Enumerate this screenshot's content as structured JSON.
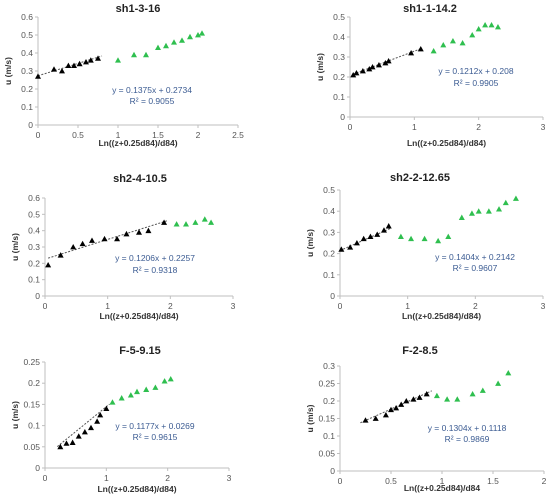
{
  "colors": {
    "black_series": "#000000",
    "green_series": "#2fbf4f",
    "equation_text": "#3b5b92"
  },
  "chart_data": [
    {
      "type": "scatter",
      "title": "sh1-3-16",
      "xlabel": "Ln((z+0.25d84)/d84)",
      "ylabel": "u (m/s)",
      "xlim": [
        0,
        2.5
      ],
      "ylim": [
        0,
        0.6
      ],
      "xticks": [
        "0",
        "0.5",
        "1",
        "1.5",
        "2",
        "2.5"
      ],
      "yticks": [
        "0",
        "0.1",
        "0.2",
        "0.3",
        "0.4",
        "0.5",
        "0.6"
      ],
      "series": [
        {
          "color": "black",
          "points": [
            [
              0.0,
              0.27
            ],
            [
              0.2,
              0.31
            ],
            [
              0.3,
              0.3
            ],
            [
              0.38,
              0.33
            ],
            [
              0.45,
              0.33
            ],
            [
              0.52,
              0.34
            ],
            [
              0.6,
              0.35
            ],
            [
              0.66,
              0.36
            ],
            [
              0.75,
              0.37
            ]
          ]
        },
        {
          "color": "green",
          "points": [
            [
              1.0,
              0.36
            ],
            [
              1.2,
              0.39
            ],
            [
              1.35,
              0.39
            ],
            [
              1.5,
              0.43
            ],
            [
              1.6,
              0.44
            ],
            [
              1.7,
              0.46
            ],
            [
              1.8,
              0.47
            ],
            [
              1.9,
              0.49
            ],
            [
              2.0,
              0.5
            ],
            [
              2.05,
              0.51
            ]
          ]
        }
      ],
      "trend": {
        "slope": 0.1375,
        "intercept": 0.2734,
        "x_range": [
          0,
          0.8
        ]
      },
      "equation": "y = 0.1375x + 0.2734",
      "r2": "R² = 0.9055"
    },
    {
      "type": "scatter",
      "title": "sh1-1-14.2",
      "xlabel": "Ln((z+0.25d84)/d84)",
      "ylabel": "u (m/s)",
      "xlim": [
        0,
        3
      ],
      "ylim": [
        0,
        0.5
      ],
      "xticks": [
        "0",
        "1",
        "2",
        "3"
      ],
      "yticks": [
        "0",
        "0.1",
        "0.2",
        "0.3",
        "0.4",
        "0.5"
      ],
      "series": [
        {
          "color": "black",
          "points": [
            [
              0.05,
              0.21
            ],
            [
              0.1,
              0.22
            ],
            [
              0.2,
              0.23
            ],
            [
              0.3,
              0.24
            ],
            [
              0.35,
              0.25
            ],
            [
              0.45,
              0.26
            ],
            [
              0.55,
              0.27
            ],
            [
              0.6,
              0.28
            ],
            [
              0.95,
              0.32
            ],
            [
              1.1,
              0.34
            ]
          ]
        },
        {
          "color": "green",
          "points": [
            [
              1.3,
              0.33
            ],
            [
              1.45,
              0.36
            ],
            [
              1.6,
              0.38
            ],
            [
              1.75,
              0.37
            ],
            [
              1.9,
              0.41
            ],
            [
              2.0,
              0.44
            ],
            [
              2.1,
              0.46
            ],
            [
              2.2,
              0.46
            ],
            [
              2.3,
              0.45
            ]
          ]
        }
      ],
      "trend": {
        "slope": 0.1212,
        "intercept": 0.208,
        "x_range": [
          0.05,
          1.12
        ]
      },
      "equation": "y = 0.1212x + 0.208",
      "r2": "R² = 0.9905"
    },
    {
      "type": "scatter",
      "title": "sh2-4-10.5",
      "xlabel": "Ln((z+0.25d84)/d84)",
      "ylabel": "u (m/s)",
      "xlim": [
        0,
        3
      ],
      "ylim": [
        0,
        0.6
      ],
      "xticks": [
        "0",
        "1",
        "2",
        "3"
      ],
      "yticks": [
        "0",
        "0.1",
        "0.2",
        "0.3",
        "0.4",
        "0.5",
        "0.6"
      ],
      "series": [
        {
          "color": "black",
          "points": [
            [
              0.05,
              0.19
            ],
            [
              0.25,
              0.25
            ],
            [
              0.45,
              0.3
            ],
            [
              0.6,
              0.32
            ],
            [
              0.75,
              0.34
            ],
            [
              0.95,
              0.35
            ],
            [
              1.15,
              0.35
            ],
            [
              1.3,
              0.38
            ],
            [
              1.5,
              0.39
            ],
            [
              1.65,
              0.4
            ],
            [
              1.9,
              0.45
            ]
          ]
        },
        {
          "color": "green",
          "points": [
            [
              2.1,
              0.44
            ],
            [
              2.25,
              0.44
            ],
            [
              2.4,
              0.45
            ],
            [
              2.55,
              0.47
            ],
            [
              2.65,
              0.45
            ]
          ]
        }
      ],
      "trend": {
        "slope": 0.1206,
        "intercept": 0.2257,
        "x_range": [
          0.05,
          1.95
        ]
      },
      "equation": "y = 0.1206x + 0.2257",
      "r2": "R² = 0.9318"
    },
    {
      "type": "scatter",
      "title": "sh2-2-12.65",
      "xlabel": "Ln((z+0.25d84)/d84)",
      "ylabel": "u (m/s)",
      "xlim": [
        0,
        3
      ],
      "ylim": [
        0,
        0.5
      ],
      "xticks": [
        "0",
        "1",
        "2",
        "3"
      ],
      "yticks": [
        "0",
        "0.1",
        "0.2",
        "0.3",
        "0.4",
        "0.5"
      ],
      "series": [
        {
          "color": "black",
          "points": [
            [
              0.02,
              0.22
            ],
            [
              0.15,
              0.23
            ],
            [
              0.25,
              0.25
            ],
            [
              0.35,
              0.27
            ],
            [
              0.45,
              0.28
            ],
            [
              0.55,
              0.29
            ],
            [
              0.65,
              0.31
            ],
            [
              0.72,
              0.33
            ]
          ]
        },
        {
          "color": "green",
          "points": [
            [
              0.9,
              0.28
            ],
            [
              1.05,
              0.27
            ],
            [
              1.25,
              0.27
            ],
            [
              1.45,
              0.26
            ],
            [
              1.6,
              0.28
            ],
            [
              1.8,
              0.37
            ],
            [
              1.95,
              0.39
            ],
            [
              2.05,
              0.4
            ],
            [
              2.2,
              0.4
            ],
            [
              2.35,
              0.41
            ],
            [
              2.45,
              0.44
            ],
            [
              2.6,
              0.46
            ]
          ]
        }
      ],
      "trend": {
        "slope": 0.1404,
        "intercept": 0.2142,
        "x_range": [
          0,
          0.75
        ]
      },
      "equation": "y = 0.1404x + 0.2142",
      "r2": "R² = 0.9607"
    },
    {
      "type": "scatter",
      "title": "F-5-9.15",
      "xlabel": "Ln((z+0.25d84)/d84)",
      "ylabel": "u (m/s)",
      "xlim": [
        0,
        3
      ],
      "ylim": [
        0,
        0.25
      ],
      "xticks": [
        "0",
        "1",
        "2",
        "3"
      ],
      "yticks": [
        "0",
        "0.05",
        "0.1",
        "0.15",
        "0.2",
        "0.25"
      ],
      "series": [
        {
          "color": "black",
          "points": [
            [
              0.25,
              0.05
            ],
            [
              0.35,
              0.058
            ],
            [
              0.45,
              0.06
            ],
            [
              0.55,
              0.075
            ],
            [
              0.65,
              0.085
            ],
            [
              0.75,
              0.095
            ],
            [
              0.85,
              0.11
            ],
            [
              0.9,
              0.125
            ],
            [
              1.0,
              0.14
            ]
          ]
        },
        {
          "color": "green",
          "points": [
            [
              1.1,
              0.155
            ],
            [
              1.25,
              0.165
            ],
            [
              1.4,
              0.172
            ],
            [
              1.5,
              0.18
            ],
            [
              1.65,
              0.185
            ],
            [
              1.8,
              0.19
            ],
            [
              1.95,
              0.205
            ],
            [
              2.05,
              0.21
            ]
          ]
        }
      ],
      "trend": {
        "slope": 0.1177,
        "intercept": 0.0269,
        "x_range": [
          0.2,
          1.05
        ]
      },
      "equation": "y = 0.1177x + 0.0269",
      "r2": "R² = 0.9615"
    },
    {
      "type": "scatter",
      "title": "F-2-8.5",
      "xlabel": "Ln((z+0.25d84)/d84",
      "ylabel": "u (m/s)",
      "xlim": [
        0,
        2
      ],
      "ylim": [
        0,
        0.3
      ],
      "xticks": [
        "0",
        "0.5",
        "1",
        "1.5",
        "2"
      ],
      "yticks": [
        "0",
        "0.05",
        "0.1",
        "0.15",
        "0.2",
        "0.25",
        "0.3"
      ],
      "series": [
        {
          "color": "black",
          "points": [
            [
              0.25,
              0.145
            ],
            [
              0.35,
              0.15
            ],
            [
              0.45,
              0.16
            ],
            [
              0.5,
              0.175
            ],
            [
              0.55,
              0.18
            ],
            [
              0.6,
              0.19
            ],
            [
              0.65,
              0.2
            ],
            [
              0.72,
              0.205
            ],
            [
              0.78,
              0.21
            ],
            [
              0.85,
              0.22
            ]
          ]
        },
        {
          "color": "green",
          "points": [
            [
              0.95,
              0.215
            ],
            [
              1.05,
              0.205
            ],
            [
              1.15,
              0.205
            ],
            [
              1.3,
              0.22
            ],
            [
              1.4,
              0.23
            ],
            [
              1.55,
              0.25
            ],
            [
              1.65,
              0.28
            ]
          ]
        }
      ],
      "trend": {
        "slope": 0.1304,
        "intercept": 0.1118,
        "x_range": [
          0.2,
          0.9
        ]
      },
      "equation": "y = 0.1304x + 0.1118",
      "r2": "R² = 0.9869"
    }
  ]
}
